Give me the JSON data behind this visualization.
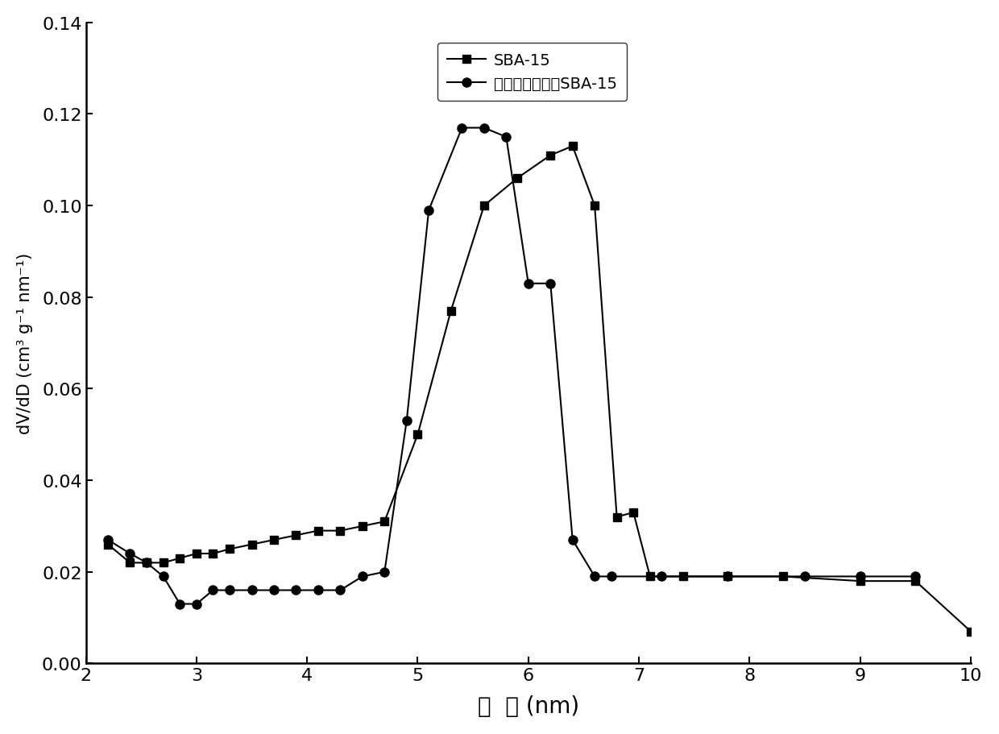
{
  "sba15_x": [
    2.2,
    2.4,
    2.55,
    2.7,
    2.85,
    3.0,
    3.15,
    3.3,
    3.5,
    3.7,
    3.9,
    4.1,
    4.3,
    4.5,
    4.7,
    5.0,
    5.3,
    5.6,
    5.9,
    6.2,
    6.4,
    6.6,
    6.8,
    6.95,
    7.1,
    7.4,
    7.8,
    8.3,
    9.0,
    9.5,
    10.0
  ],
  "sba15_y": [
    0.026,
    0.022,
    0.022,
    0.022,
    0.023,
    0.024,
    0.024,
    0.025,
    0.026,
    0.027,
    0.028,
    0.029,
    0.029,
    0.03,
    0.031,
    0.05,
    0.077,
    0.1,
    0.106,
    0.111,
    0.113,
    0.1,
    0.032,
    0.033,
    0.019,
    0.019,
    0.019,
    0.019,
    0.018,
    0.018,
    0.007
  ],
  "modified_x": [
    2.2,
    2.4,
    2.55,
    2.7,
    2.85,
    3.0,
    3.15,
    3.3,
    3.5,
    3.7,
    3.9,
    4.1,
    4.3,
    4.5,
    4.7,
    4.9,
    5.1,
    5.4,
    5.6,
    5.8,
    6.0,
    6.2,
    6.4,
    6.6,
    6.75,
    7.2,
    7.8,
    8.5,
    9.0,
    9.5
  ],
  "modified_y": [
    0.027,
    0.024,
    0.022,
    0.019,
    0.013,
    0.013,
    0.016,
    0.016,
    0.016,
    0.016,
    0.016,
    0.016,
    0.016,
    0.019,
    0.02,
    0.053,
    0.099,
    0.117,
    0.117,
    0.115,
    0.083,
    0.083,
    0.027,
    0.019,
    0.019,
    0.019,
    0.019,
    0.019,
    0.019,
    0.019
  ],
  "xlabel": "孔  径 (nm)",
  "ylabel": "dV/dD (cm³ g⁻¹ nm⁻¹)",
  "legend1": "SBA-15",
  "legend2": "萊基磺酸基改性SBA-15",
  "xlim": [
    2,
    10
  ],
  "ylim": [
    0.0,
    0.14
  ],
  "yticks": [
    0.0,
    0.02,
    0.04,
    0.06,
    0.08,
    0.1,
    0.12,
    0.14
  ],
  "xticks": [
    2,
    3,
    4,
    5,
    6,
    7,
    8,
    9,
    10
  ]
}
